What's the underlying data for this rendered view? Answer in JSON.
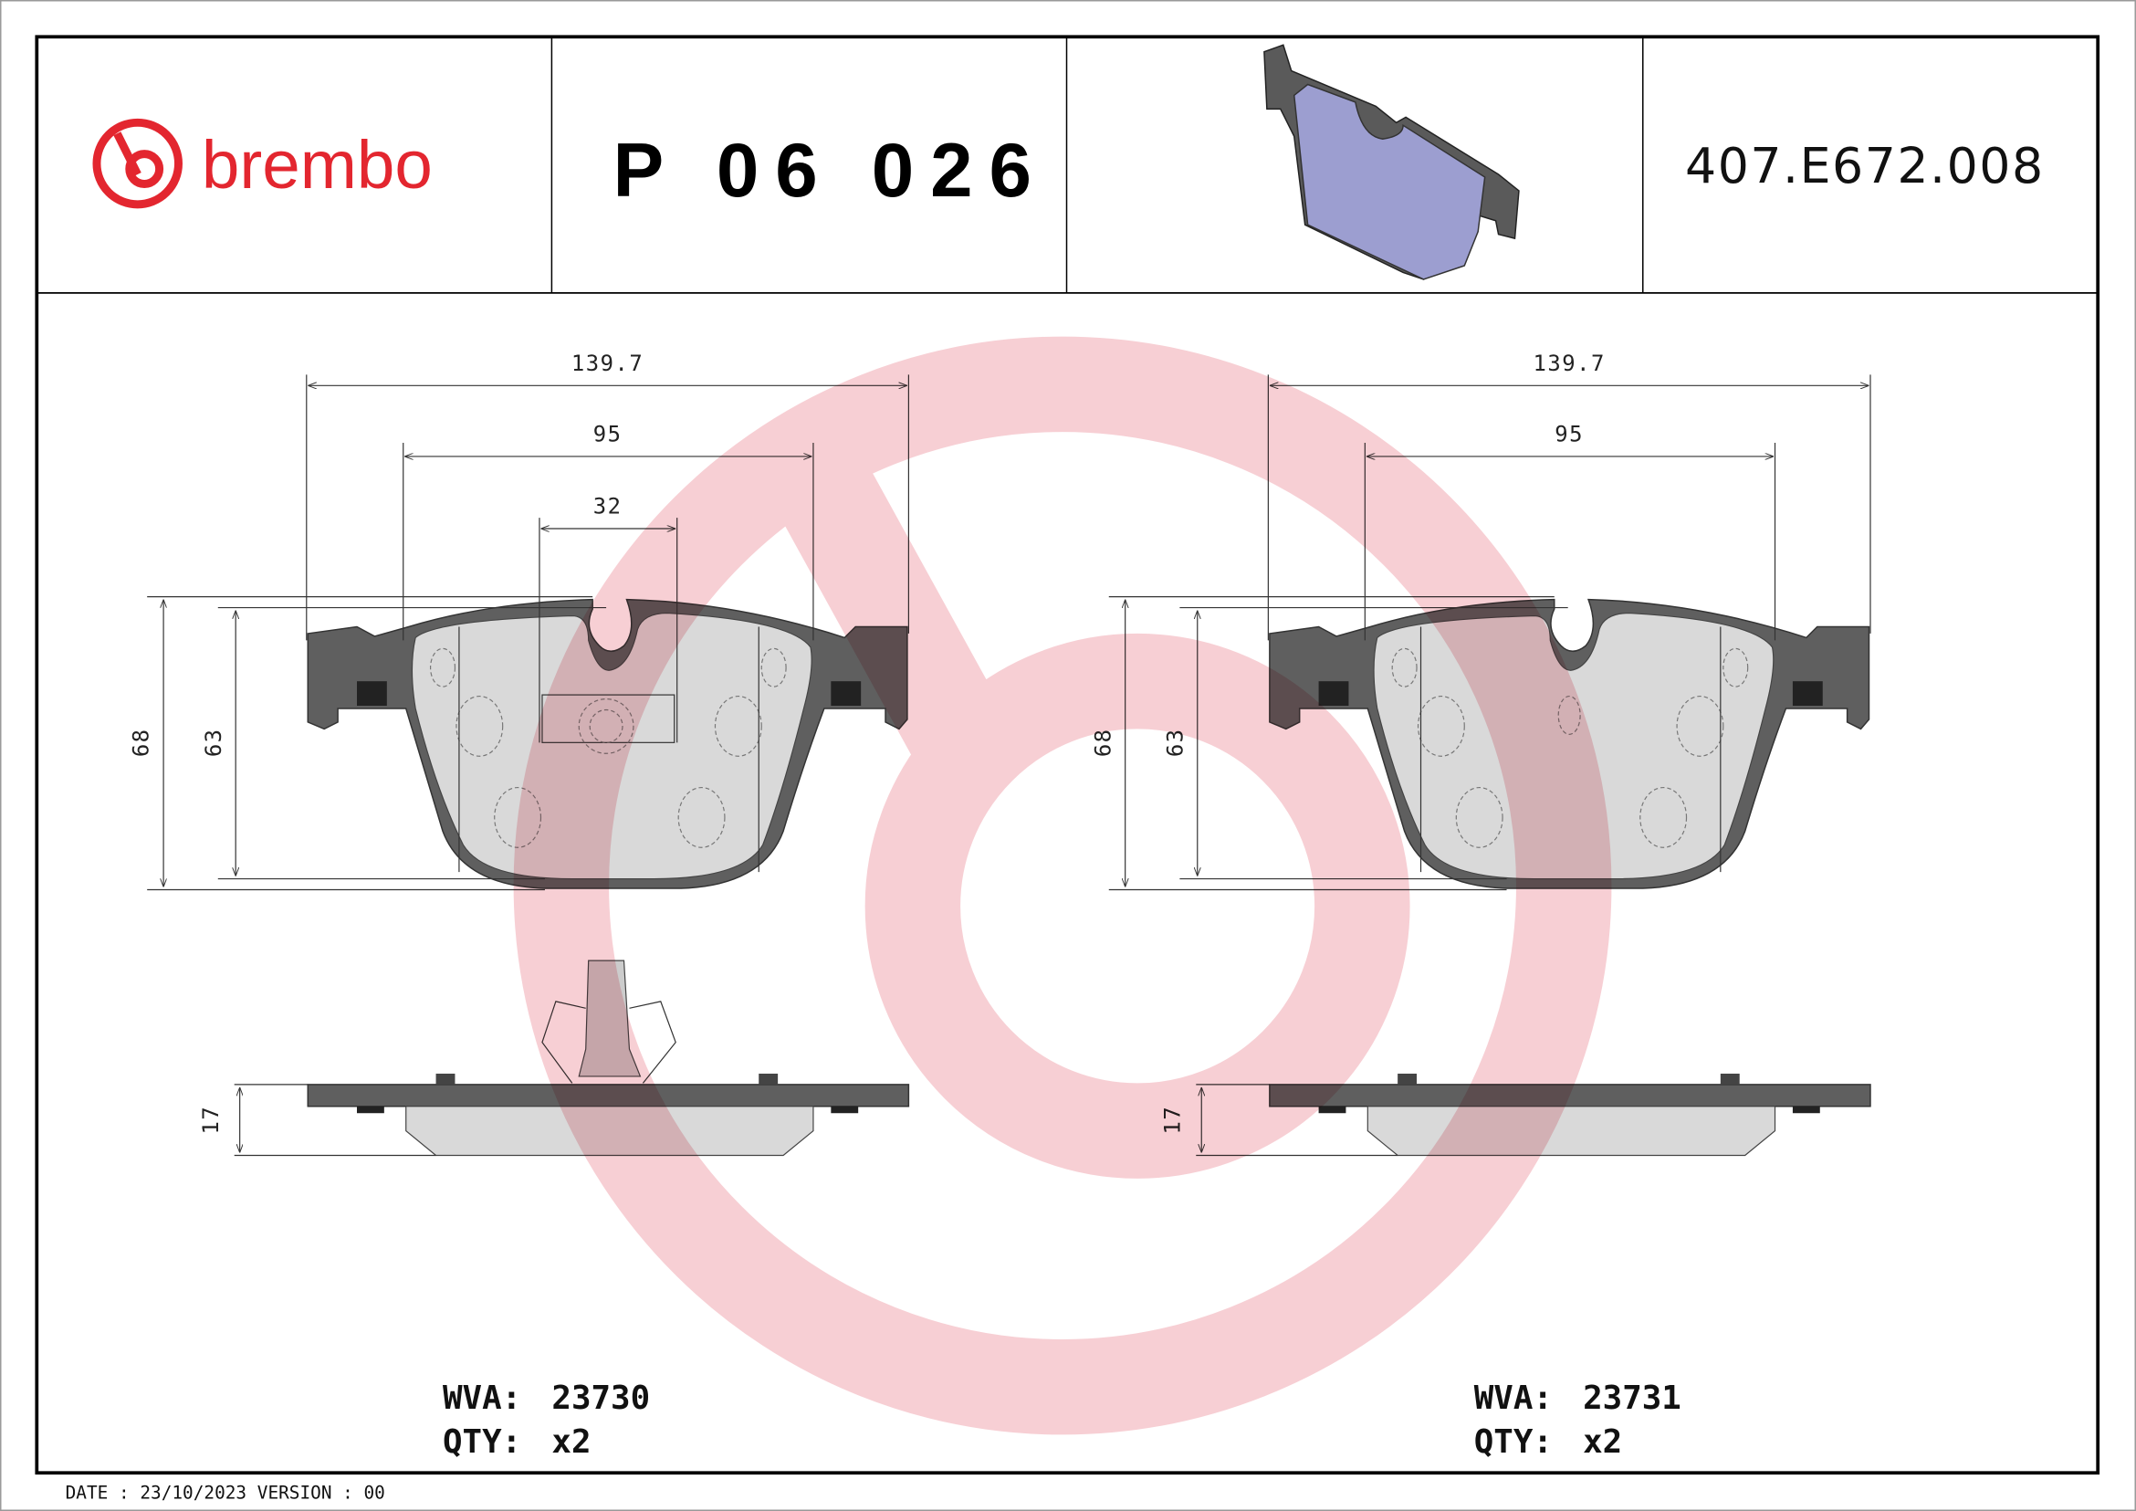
{
  "header": {
    "brand": "brembo",
    "part_number": "P 06 026",
    "reference": "407.E672.008",
    "brand_color": "#e3262f"
  },
  "left_pad": {
    "dims": {
      "overall_width": "139.7",
      "mid_width": "95",
      "sensor_width": "32",
      "height_total": "68",
      "height_friction": "63",
      "thickness": "17"
    },
    "wva_label": "WVA:",
    "wva_value": "23730",
    "qty_label": "QTY:",
    "qty_value": "x2"
  },
  "right_pad": {
    "dims": {
      "overall_width": "139.7",
      "mid_width": "95",
      "height_total": "68",
      "height_friction": "63",
      "thickness": "17"
    },
    "wva_label": "WVA:",
    "wva_value": "23731",
    "qty_label": "QTY:",
    "qty_value": "x2"
  },
  "footer": {
    "date_line": "DATE : 23/10/2023 VERSION : 00"
  },
  "watermark": {
    "icon": "brembo-logo-watermark",
    "color": "#f4c7cc"
  }
}
